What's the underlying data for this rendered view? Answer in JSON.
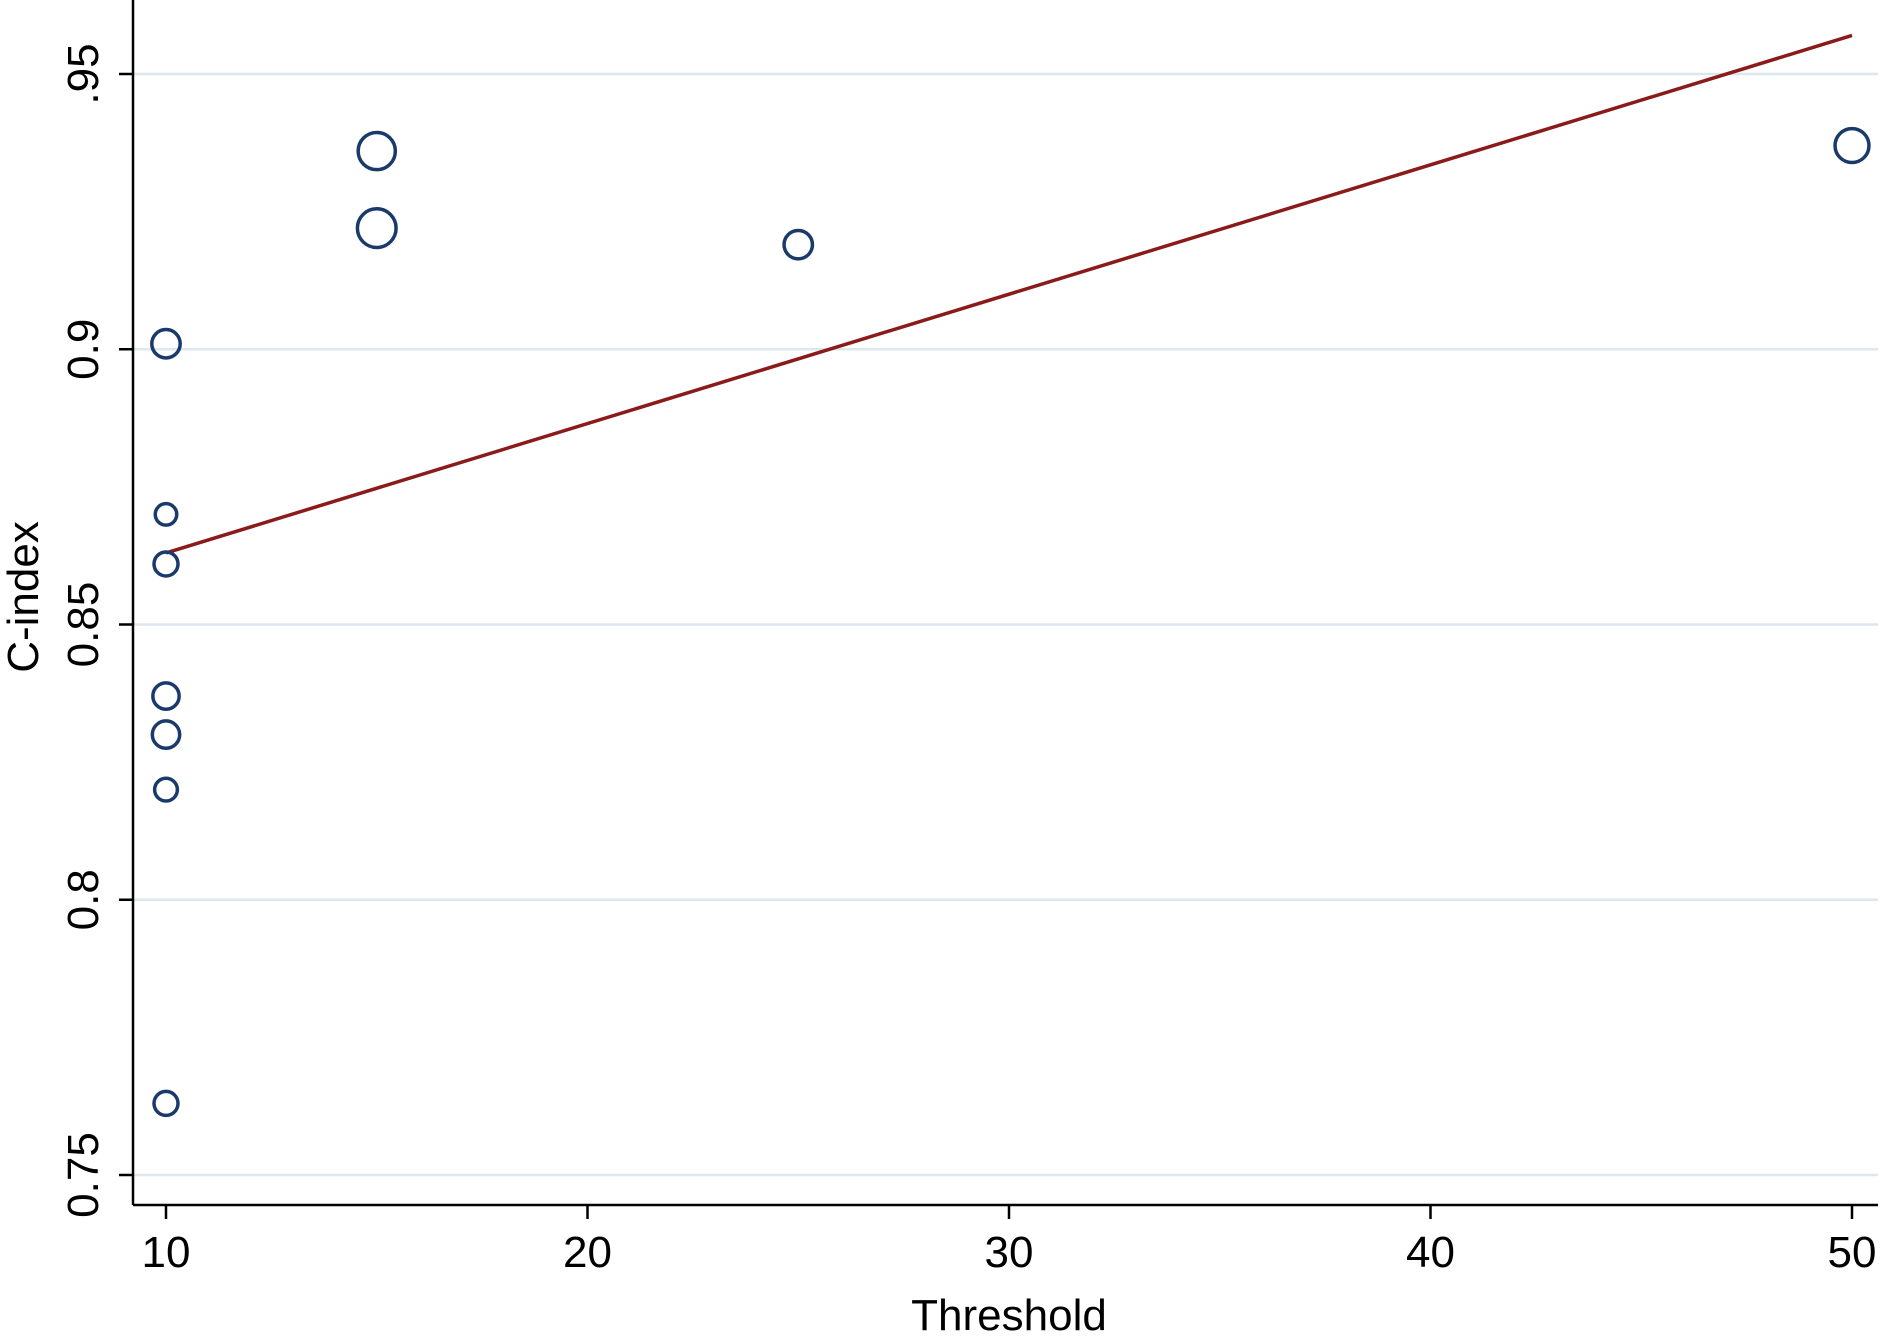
{
  "chart_data": {
    "type": "scatter",
    "title": "",
    "xlabel": "Threshold",
    "ylabel": "C-index",
    "xlim": [
      10,
      50
    ],
    "ylim": [
      0.75,
      0.957
    ],
    "x_ticks": [
      10,
      20,
      30,
      40,
      50
    ],
    "x_tick_labels": [
      "10",
      "20",
      "30",
      "40",
      "50"
    ],
    "y_ticks": [
      0.75,
      0.8,
      0.85,
      0.9,
      0.95
    ],
    "y_tick_labels": [
      "0.75",
      "0.8",
      "0.85",
      "0.9",
      ".95"
    ],
    "grid": "horizontal",
    "points": [
      {
        "x": 10,
        "y": 0.901,
        "weight": 1.4
      },
      {
        "x": 10,
        "y": 0.87,
        "weight": 0.8
      },
      {
        "x": 10,
        "y": 0.861,
        "weight": 1.0
      },
      {
        "x": 10,
        "y": 0.837,
        "weight": 1.2
      },
      {
        "x": 10,
        "y": 0.83,
        "weight": 1.3
      },
      {
        "x": 10,
        "y": 0.82,
        "weight": 0.9
      },
      {
        "x": 10,
        "y": 0.763,
        "weight": 1.0
      },
      {
        "x": 15,
        "y": 0.936,
        "weight": 2.4
      },
      {
        "x": 15,
        "y": 0.922,
        "weight": 2.6
      },
      {
        "x": 25,
        "y": 0.919,
        "weight": 1.4
      },
      {
        "x": 50,
        "y": 0.937,
        "weight": 2.0
      }
    ],
    "fit_line": {
      "x": [
        10,
        50
      ],
      "y": [
        0.863,
        0.957
      ]
    },
    "colors": {
      "marker": "#1a3a6b",
      "fit_line": "#8b1a1a",
      "grid": "#dce7ee",
      "axis": "#000000"
    }
  }
}
